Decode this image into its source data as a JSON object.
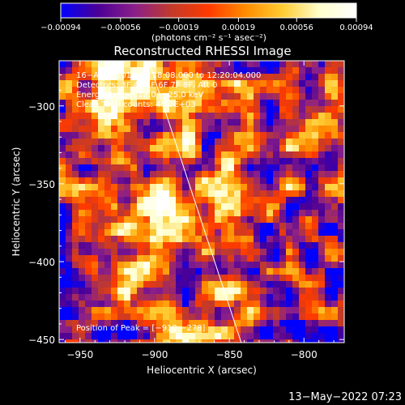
{
  "chart_data": {
    "type": "heatmap",
    "title": "Reconstructed RHESSI Image",
    "xlabel": "Heliocentric X (arcsec)",
    "ylabel": "Heliocentric Y (arcsec)",
    "xlim": [
      -964,
      -773
    ],
    "ylim": [
      -452,
      -271
    ],
    "xticks": [
      -950,
      -900,
      -850,
      -800
    ],
    "yticks": [
      -300,
      -350,
      -400,
      -450
    ],
    "xtick_labels": [
      "−950",
      "−900",
      "−850",
      "−800"
    ],
    "ytick_labels": [
      "−300",
      "−350",
      "−400",
      "−450"
    ],
    "colorbar": {
      "ticks": [
        -0.00094,
        -0.00056,
        -0.00019,
        0.00019,
        0.00056,
        0.00094
      ],
      "tick_labels": [
        "−0.00094",
        "−0.00056",
        "−0.00019",
        "0.00019",
        "0.00056",
        "0.00094"
      ],
      "unit_label": "(photons cm⁻² s⁻¹ asec⁻²)",
      "colors": [
        "#0000ff",
        "#4b0096",
        "#8a1f8a",
        "#c23a2a",
        "#ff3a00",
        "#ff8c00",
        "#ffcc33",
        "#ffffcc",
        "#ffffff"
      ]
    },
    "annotations": [
      "16−Aug−2011 12:18:08.000 to 12:20:04.000",
      "Detectors: 3F 4F 5F 6F 7F 8F, Att 0",
      "Energy Range: 12.0 − 25.0 keV",
      "Clean     Total counts: 4.10E+03"
    ],
    "peak_label": "Position of Peak = [−910,−278]",
    "limb_line": [
      [
        -904,
        -271
      ],
      [
        -842,
        -452
      ]
    ]
  },
  "footer": {
    "timestamp": "13−May−2022 07:23"
  }
}
